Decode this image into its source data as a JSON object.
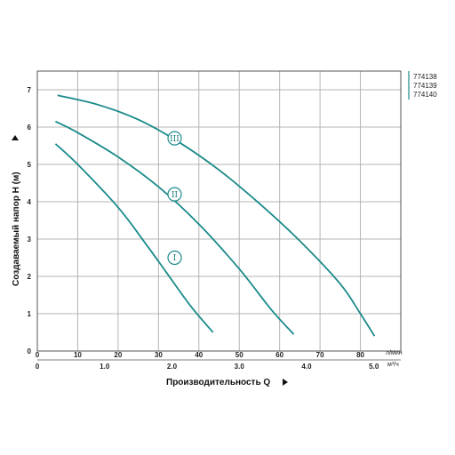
{
  "chart_data": {
    "type": "line",
    "xlabel": "Производительность Q",
    "ylabel": "Создаваемый напор Н (м)",
    "x_unit_primary": "л/мин",
    "x_unit_secondary": "м³/ч",
    "xlim": [
      0,
      90
    ],
    "ylim": [
      0,
      7.5
    ],
    "x_ticks_primary": [
      "0",
      "10",
      "20",
      "30",
      "40",
      "50",
      "60",
      "70",
      "80"
    ],
    "x_ticks_secondary": [
      "0",
      "1.0",
      "2.0",
      "3.0",
      "4.0",
      "5.0"
    ],
    "y_ticks": [
      "0",
      "1",
      "2",
      "3",
      "4",
      "5",
      "6",
      "7"
    ],
    "grid": true,
    "legend_position": "top-right",
    "legend": [
      "774138",
      "774139",
      "774140"
    ],
    "series_color": "#1a8a8a",
    "series": [
      {
        "label": "I",
        "label_at": [
          34,
          2.5
        ],
        "points": [
          [
            4.5,
            5.55
          ],
          [
            10,
            5.0
          ],
          [
            20,
            3.85
          ],
          [
            27,
            2.85
          ],
          [
            32,
            2.1
          ],
          [
            38,
            1.2
          ],
          [
            43.5,
            0.5
          ]
        ]
      },
      {
        "label": "II",
        "label_at": [
          34,
          4.2
        ],
        "points": [
          [
            4.5,
            6.15
          ],
          [
            10,
            5.85
          ],
          [
            20,
            5.2
          ],
          [
            30,
            4.4
          ],
          [
            40,
            3.4
          ],
          [
            50,
            2.2
          ],
          [
            58,
            1.1
          ],
          [
            63.5,
            0.45
          ]
        ]
      },
      {
        "label": "III",
        "label_at": [
          34,
          5.7
        ],
        "points": [
          [
            5,
            6.85
          ],
          [
            15,
            6.6
          ],
          [
            25,
            6.2
          ],
          [
            35,
            5.6
          ],
          [
            45,
            4.85
          ],
          [
            55,
            3.95
          ],
          [
            65,
            2.95
          ],
          [
            75,
            1.8
          ],
          [
            80,
            1.0
          ],
          [
            83.5,
            0.4
          ]
        ]
      }
    ]
  }
}
